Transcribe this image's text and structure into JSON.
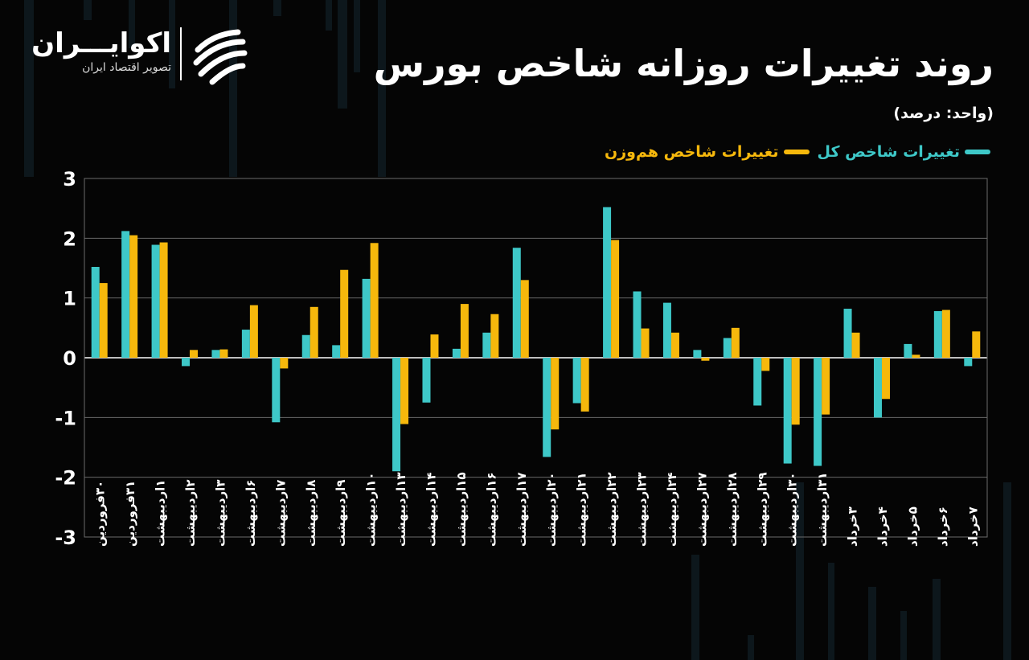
{
  "header": {
    "title": "روند تغییرات روزانه شاخص بورس",
    "unit": "(واحد: درصد)"
  },
  "logo": {
    "name": "اکوایـــران",
    "tagline": "تصویر اقتصاد ایران"
  },
  "colors": {
    "background": "#050505",
    "series1": "#3ec8c8",
    "series2": "#f6b80c",
    "grid": "#ffffff"
  },
  "chart_data": {
    "type": "bar",
    "title": "روند تغییرات روزانه شاخص بورس",
    "ylim": [
      -3,
      3
    ],
    "yticks": [
      "3",
      "2",
      "1",
      "0",
      "-1",
      "-2",
      "-3"
    ],
    "grid": true,
    "legend_position": "top-right",
    "categories": [
      "۳۰فروردین",
      "۳۱فروردین",
      "۱اردیبهشت",
      "۲اردیبهشت",
      "۳اردیبهشت",
      "۶اردیبهشت",
      "۷اردیبهشت",
      "۸اردیبهشت",
      "۹اردیبهشت",
      "۱۰اردیبهشت",
      "۱۳اردیبهشت",
      "۱۴اردیبهشت",
      "۱۵اردیبهشت",
      "۱۶اردیبهشت",
      "۱۷اردیبهشت",
      "۲۰اردیبهشت",
      "۲۱اردیبهشت",
      "۲۲اردیبهشت",
      "۲۳اردیبهشت",
      "۲۴اردیبهشت",
      "۲۷اردیبهشت",
      "۲۸اردیبهشت",
      "۲۹اردیبهشت",
      "۳۰اردیبهشت",
      "۳۱اردیبهشت",
      "۳خرداد",
      "۴خرداد",
      "۵خرداد",
      "۶خرداد",
      "۷خرداد"
    ],
    "series": [
      {
        "name": "تغییرات شاخص کل",
        "color": "#3ec8c8",
        "values": [
          1.52,
          2.12,
          1.89,
          -0.14,
          0.13,
          0.47,
          -1.08,
          0.38,
          0.21,
          1.32,
          -1.9,
          -0.75,
          0.15,
          0.42,
          1.84,
          -1.66,
          -0.76,
          2.52,
          1.11,
          0.92,
          0.13,
          0.33,
          -0.8,
          -1.77,
          -1.81,
          0.82,
          -1.0,
          0.23,
          0.78,
          -0.14
        ]
      },
      {
        "name": "تغییرات شاخص هم‌وزن",
        "color": "#f6b80c",
        "values": [
          1.25,
          2.05,
          1.93,
          0.13,
          0.14,
          0.88,
          -0.18,
          0.85,
          1.47,
          1.92,
          -1.11,
          0.39,
          0.9,
          0.73,
          1.3,
          -1.2,
          -0.9,
          1.97,
          0.49,
          0.42,
          -0.05,
          0.5,
          -0.22,
          -1.12,
          -0.95,
          0.42,
          -0.69,
          0.05,
          0.8,
          0.44
        ]
      }
    ]
  }
}
